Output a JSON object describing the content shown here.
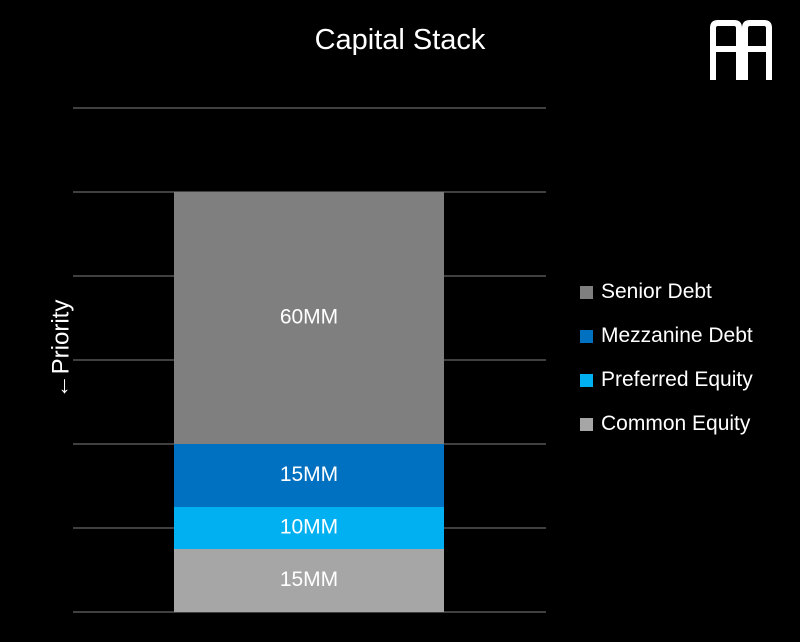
{
  "chart_data": {
    "type": "bar",
    "stacked": true,
    "title": "Capital Stack",
    "ylabel": "←Priority",
    "ylim": [
      0,
      125
    ],
    "grid": true,
    "legend_position": "right",
    "series": [
      {
        "name": "Common Equity",
        "value": 15,
        "label": "15MM",
        "color": "#a6a6a6"
      },
      {
        "name": "Preferred Equity",
        "value": 10,
        "label": "10MM",
        "color": "#00b0f0"
      },
      {
        "name": "Mezzanine Debt",
        "value": 15,
        "label": "15MM",
        "color": "#0070c0"
      },
      {
        "name": "Senior Debt",
        "value": 60,
        "label": "60MM",
        "color": "#7f7f7f"
      }
    ],
    "legend_order": [
      "Senior Debt",
      "Mezzanine Debt",
      "Preferred Equity",
      "Common Equity"
    ]
  },
  "logo": {
    "icon": "double-a-logo-icon"
  }
}
